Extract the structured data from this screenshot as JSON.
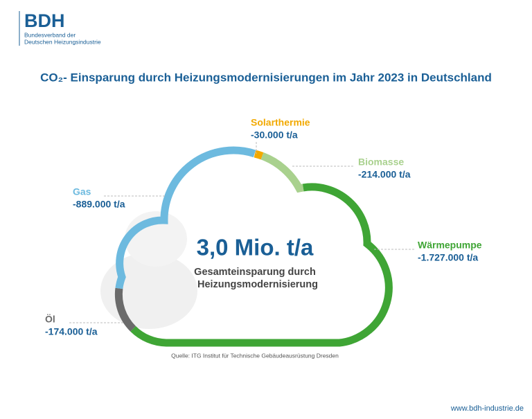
{
  "header": {
    "logo": "BDH",
    "org_line1": "Bundesverband der",
    "org_line2": "Deutschen Heizungsindustrie"
  },
  "chart_data": {
    "type": "cloud",
    "title": "CO₂- Einsparung durch Heizungsmodernisierungen im Jahr 2023 in Deutschland",
    "total_label": "3,0 Mio. t/a",
    "center_line1": "Gesamteinsparung durch",
    "center_line2": "Heizungsmodernisierung",
    "series": [
      {
        "name": "Solarthermie",
        "color": "#f2a900",
        "values": [
          -30000
        ],
        "value_labels": [
          "-30.000 t/a"
        ]
      },
      {
        "name": "Biomasse",
        "color": "#a9d18e",
        "values": [
          -214000
        ],
        "value_labels": [
          "-214.000 t/a"
        ]
      },
      {
        "name": "Wärmepumpe",
        "color": "#3fa535",
        "values": [
          -1727000
        ],
        "value_labels": [
          "-1.727.000 t/a"
        ]
      },
      {
        "name": "Öl",
        "color": "#6b6b6b",
        "values": [
          -174000
        ],
        "value_labels": [
          "-174.000 t/a"
        ]
      },
      {
        "name": "Gas",
        "color": "#6dbadf",
        "values": [
          -889000
        ],
        "value_labels": [
          "-889.000 t/a"
        ]
      }
    ]
  },
  "footer": {
    "source": "Quelle: ITG Institut für Technische Gebäudeausrüstung Dresden",
    "url": "www.bdh-industrie.de"
  }
}
